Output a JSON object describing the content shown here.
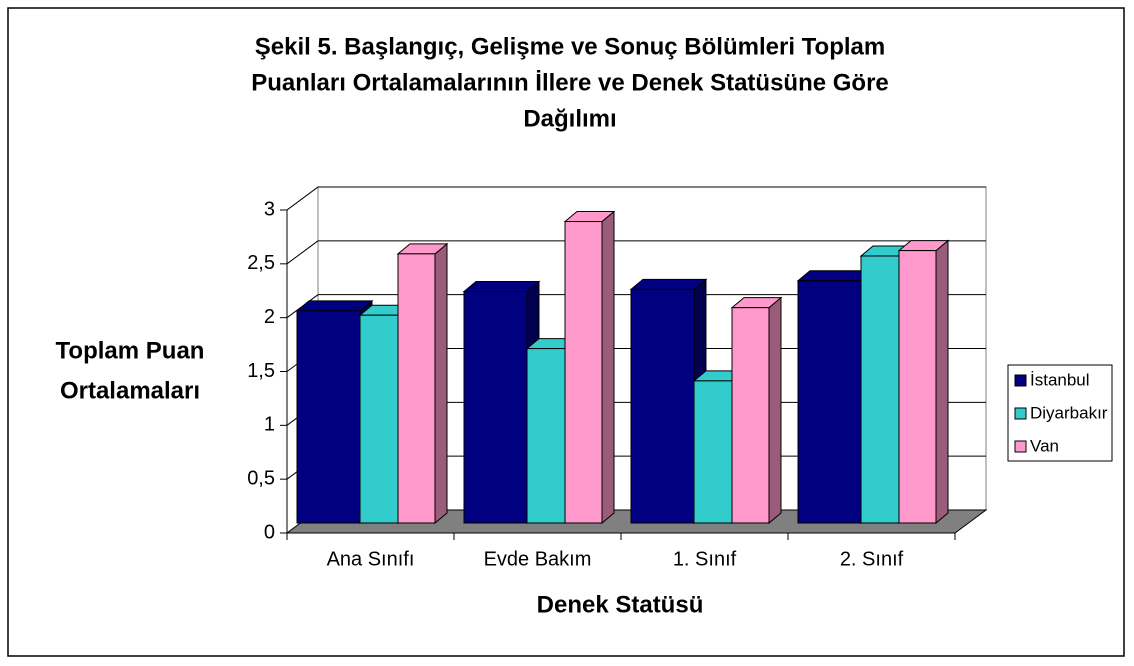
{
  "chart_data": {
    "type": "bar3d",
    "title": [
      "Şekil 5. Başlangıç, Gelişme ve Sonuç Bölümleri Toplam",
      "Puanları Ortalamalarının İllere ve Denek Statüsüne Göre",
      "Dağılımı"
    ],
    "y_label": [
      "Toplam Puan",
      "Ortalamaları"
    ],
    "x_label": "Denek Statüsü",
    "categories": [
      "Ana Sınıfı",
      "Evde Bakım",
      "1. Sınıf",
      "2. Sınıf"
    ],
    "series": [
      {
        "name": "İstanbul",
        "color": "#000080",
        "values": [
          1.97,
          2.15,
          2.17,
          2.25
        ]
      },
      {
        "name": "Diyarbakır",
        "color": "#33CCCC",
        "values": [
          1.93,
          1.62,
          1.32,
          2.48
        ]
      },
      {
        "name": "Van",
        "color": "#FF99CC",
        "values": [
          2.5,
          2.8,
          2.0,
          2.53
        ]
      }
    ],
    "ylim": [
      0,
      3
    ],
    "yticks": [
      0,
      {
        "value": 0.5,
        "label": "0,5"
      },
      1,
      {
        "value": 1.5,
        "label": "1,5"
      },
      2,
      {
        "value": 2.5,
        "label": "2,5"
      },
      3
    ],
    "grid": true,
    "legend": "right"
  }
}
